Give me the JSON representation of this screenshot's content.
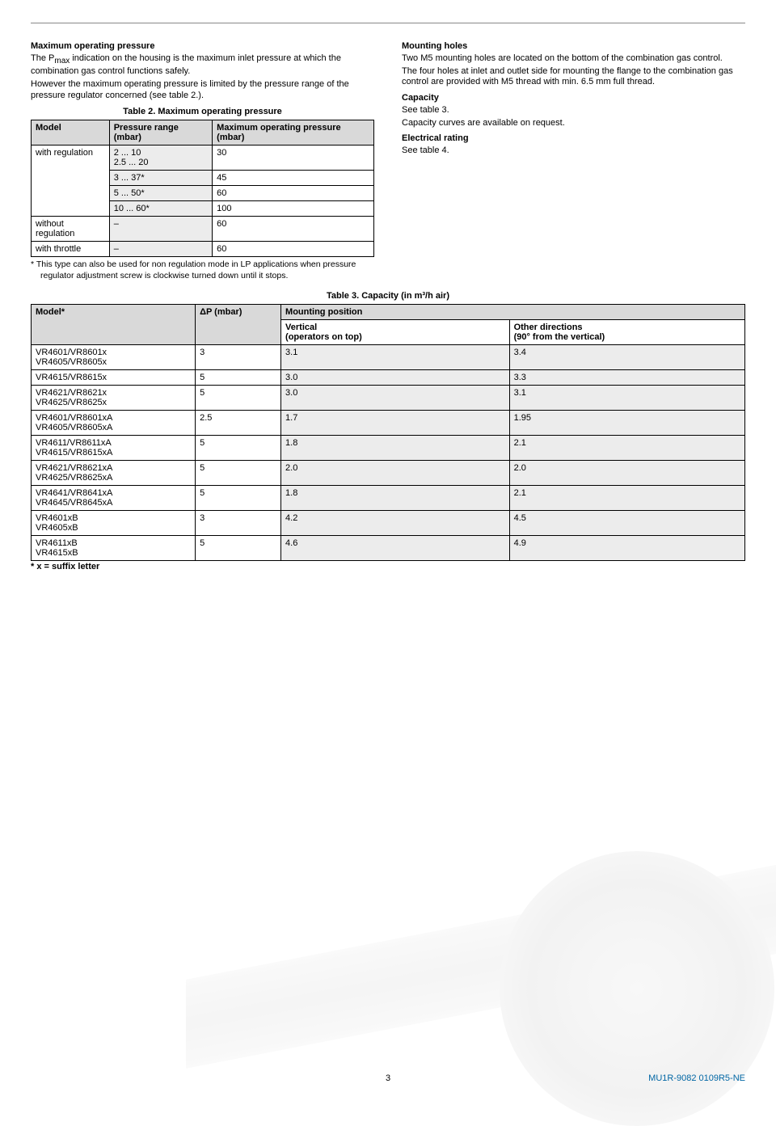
{
  "left": {
    "maxOpHead": "Maximum operating pressure",
    "maxOpP1a": "The P",
    "maxOpSub": "max",
    "maxOpP1b": " indication on the housing is the maximum inlet pressure at which the combination gas control functions safely.",
    "maxOpP2": "However the maximum operating pressure is limited by the pressure range of the pressure regulator concerned (see table 2.).",
    "t2Caption": "Table 2. Maximum operating pressure",
    "t2H1": "Model",
    "t2H2": "Pressure range (mbar)",
    "t2H3": "Maximum operating pressure (mbar)",
    "t2r1c1": "with regulation",
    "t2r1c2a": "2 ... 10",
    "t2r1c2b": "2.5 ... 20",
    "t2r1c3": "30",
    "t2r2c2": "3 ... 37*",
    "t2r2c3": "45",
    "t2r3c2": "5 ... 50*",
    "t2r3c3": "60",
    "t2r4c2": "10 ... 60*",
    "t2r4c3": "100",
    "t2r5c1": "without regulation",
    "t2r5c2": "–",
    "t2r5c3": "60",
    "t2r6c1": "with throttle",
    "t2r6c2": "–",
    "t2r6c3": "60",
    "t2Foot": "*   This type can also be used for non regulation mode in LP applications when pressure regulator adjustment screw is clockwise turned down until it stops."
  },
  "right": {
    "mhHead": "Mounting holes",
    "mhP1": "Two M5 mounting holes are located on the bottom of the combination gas control.",
    "mhP2": "The four holes at inlet and outlet side for mounting the flange to the combination gas control are provided with M5 thread with min. 6.5 mm full thread.",
    "capHead": "Capacity",
    "capP1": "See table 3.",
    "capP2": "Capacity curves are available on request.",
    "erHead": "Electrical rating",
    "erP1": "See table 4."
  },
  "t3": {
    "caption": "Table 3. Capacity (in m³/h air)",
    "h1": "Model*",
    "h2": "ΔP (mbar)",
    "h3": "Mounting position",
    "h3a": "Vertical\n(operators on top)",
    "h3b": "Other directions\n(90° from the vertical)",
    "rows": [
      {
        "m": "VR4601/VR8601x\nVR4605/VR8605x",
        "dp": "3",
        "v": "3.1",
        "o": "3.4",
        "sh": true
      },
      {
        "m": "VR4615/VR8615x",
        "dp": "5",
        "v": "3.0",
        "o": "3.3",
        "sh": true
      },
      {
        "m": "VR4621/VR8621x\nVR4625/VR8625x",
        "dp": "5",
        "v": "3.0",
        "o": "3.1",
        "sh": true
      },
      {
        "m": "VR4601/VR8601xA\nVR4605/VR8605xA",
        "dp": "2.5",
        "v": "1.7",
        "o": "1.95",
        "sh": true
      },
      {
        "m": "VR4611/VR8611xA\nVR4615/VR8615xA",
        "dp": "5",
        "v": "1.8",
        "o": "2.1",
        "sh": true
      },
      {
        "m": "VR4621/VR8621xA\nVR4625/VR8625xA",
        "dp": "5",
        "v": "2.0",
        "o": "2.0",
        "sh": true
      },
      {
        "m": "VR4641/VR8641xA\nVR4645/VR8645xA",
        "dp": "5",
        "v": "1.8",
        "o": "2.1",
        "sh": true
      },
      {
        "m": "VR4601xB\nVR4605xB",
        "dp": "3",
        "v": "4.2",
        "o": "4.5",
        "sh": true
      },
      {
        "m": "VR4611xB\nVR4615xB",
        "dp": "5",
        "v": "4.6",
        "o": "4.9",
        "sh": true
      }
    ],
    "suffix": "* x = suffix letter"
  },
  "footer": {
    "page": "3",
    "code": "MU1R-9082 0109R5-NE"
  }
}
